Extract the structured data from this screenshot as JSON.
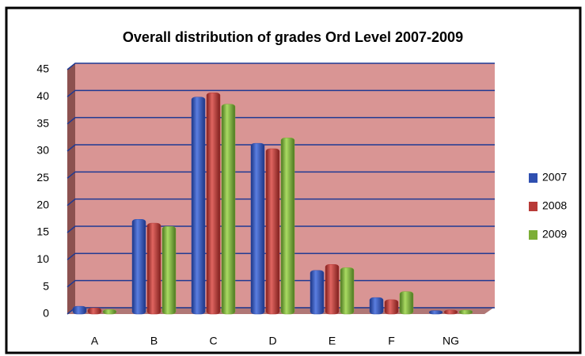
{
  "chart_data": {
    "type": "bar",
    "title": "Overall distribution of grades Ord Level 2007-2009",
    "categories": [
      "A",
      "B",
      "C",
      "D",
      "E",
      "F",
      "NG"
    ],
    "series": [
      {
        "name": "2007",
        "color": "#2f4fb0",
        "values": [
          1,
          17,
          39.5,
          31,
          7.6,
          2.6,
          0.2
        ]
      },
      {
        "name": "2008",
        "color": "#b83a37",
        "values": [
          0.7,
          16.3,
          40.3,
          30,
          8.7,
          2.2,
          0.3
        ]
      },
      {
        "name": "2009",
        "color": "#7cae36",
        "values": [
          0.4,
          15.7,
          38.2,
          32,
          8.1,
          3.7,
          0.3
        ]
      }
    ],
    "ylim": [
      0,
      45
    ],
    "yticks": [
      0,
      5,
      10,
      15,
      20,
      25,
      30,
      35,
      40,
      45
    ],
    "grid": true
  }
}
